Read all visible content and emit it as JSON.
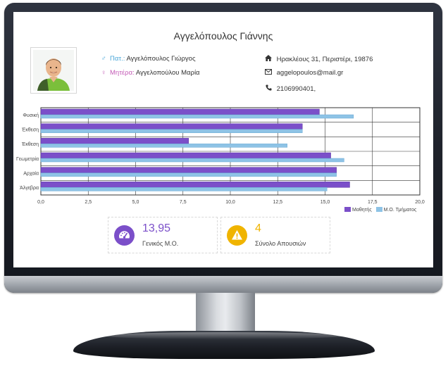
{
  "student": {
    "name": "Αγγελόπουλος Γιάννης",
    "father_label": "Πατ.:",
    "father_name": "Αγγελόπουλος Γιώργος",
    "mother_label": "Μητέρα:",
    "mother_name": "Αγγελοπούλου Μαρία",
    "address": "Ηρακλέους 31, Περιστέρι, 19876",
    "email": "aggelopoulos@mail.gr",
    "phone": "2106990401,"
  },
  "icons": {
    "father": "male-icon",
    "mother": "female-icon",
    "address": "home-icon",
    "email": "envelope-icon",
    "phone": "phone-icon",
    "average": "dashboard-icon",
    "absences": "warning-icon"
  },
  "colors": {
    "student": "#7b4fc9",
    "class_avg": "#8ec3e6",
    "average_accent": "#7b4fc9",
    "absences_accent": "#f0b400"
  },
  "chart_data": {
    "type": "bar",
    "orientation": "horizontal",
    "categories": [
      "Φυσική",
      "Έκθεση",
      "Έκθεση",
      "Γεωμετρία",
      "Αρχαία",
      "Άλγεβρα"
    ],
    "series": [
      {
        "name": "Μαθητής",
        "values": [
          14.7,
          13.8,
          7.8,
          15.3,
          15.6,
          16.3
        ]
      },
      {
        "name": "Μ.Ο. Τμήματος",
        "values": [
          16.5,
          13.8,
          13.0,
          16.0,
          15.6,
          15.1
        ]
      }
    ],
    "xlim": [
      0,
      20
    ],
    "xticks": [
      "0,0",
      "2,5",
      "5,0",
      "7,5",
      "10,0",
      "12,5",
      "15,0",
      "17,5",
      "20,0"
    ],
    "grid": true,
    "legend": "bottom-right"
  },
  "stats": {
    "average_value": "13,95",
    "average_label": "Γενικός Μ.Ο.",
    "absences_value": "4",
    "absences_label": "Σύνολο Απουσιών"
  }
}
